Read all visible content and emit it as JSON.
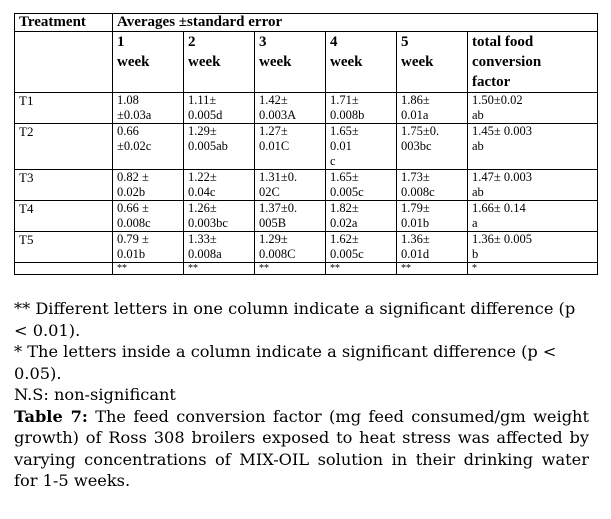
{
  "table": {
    "treatment_header": "Treatment",
    "group_header": "Averages ±standard error",
    "week_columns": [
      {
        "num": "1",
        "word": "week"
      },
      {
        "num": "2",
        "word": "week"
      },
      {
        "num": "3",
        "word": "week"
      },
      {
        "num": "4",
        "word": "week"
      },
      {
        "num": "5",
        "word": "week"
      }
    ],
    "total_header_lines": [
      "total food",
      "conversion",
      "factor"
    ],
    "rows": [
      {
        "treatment": "T1",
        "cells": [
          "1.08\n±0.03a",
          "1.11±\n0.005d",
          "1.42±\n0.003A",
          "1.71±\n0.008b",
          "1.86±\n0.01a",
          "1.50±0.02\nab"
        ]
      },
      {
        "treatment": "T2",
        "cells": [
          "0.66\n±0.02c",
          "1.29±\n0.005ab",
          "1.27±\n0.01C",
          "1.65±\n0.01\nc",
          "1.75±0.\n003bc",
          "1.45± 0.003\nab"
        ]
      },
      {
        "treatment": "T3",
        "cells": [
          "0.82    ±\n0.02b",
          "1.22±\n0.04c",
          "1.31±0.\n02C",
          "1.65±\n0.005c",
          "1.73±\n0.008c",
          "1.47± 0.003\nab"
        ]
      },
      {
        "treatment": "T4",
        "cells": [
          "0.66    ±\n0.008c",
          "1.26±\n0.003bc",
          "1.37±0.\n005B",
          "1.82±\n0.02a",
          "1.79±\n0.01b",
          "1.66± 0.14\na"
        ]
      },
      {
        "treatment": "T5",
        "cells": [
          "0.79    ±\n0.01b",
          "1.33±\n0.008a",
          "1.29±\n0.008C",
          "1.62±\n0.005c",
          "1.36±\n 0.01d",
          "1.36± 0.005\nb"
        ]
      }
    ],
    "significance_row": [
      "**",
      "**",
      "**",
      "**",
      "**",
      "*"
    ]
  },
  "notes": {
    "note1": "** Different letters in one column indicate a significant difference (p < 0.01).",
    "note2": "* The letters inside a column indicate a significant difference (p < 0.05).",
    "note3": "N.S: non-significant"
  },
  "caption": {
    "label": "Table 7:",
    "text": " The feed conversion factor (mg feed consumed/gm weight growth) of Ross 308 broilers exposed to heat stress was affected by varying concentrations of MIX-OIL solution in their drinking water for 1-5 weeks."
  }
}
